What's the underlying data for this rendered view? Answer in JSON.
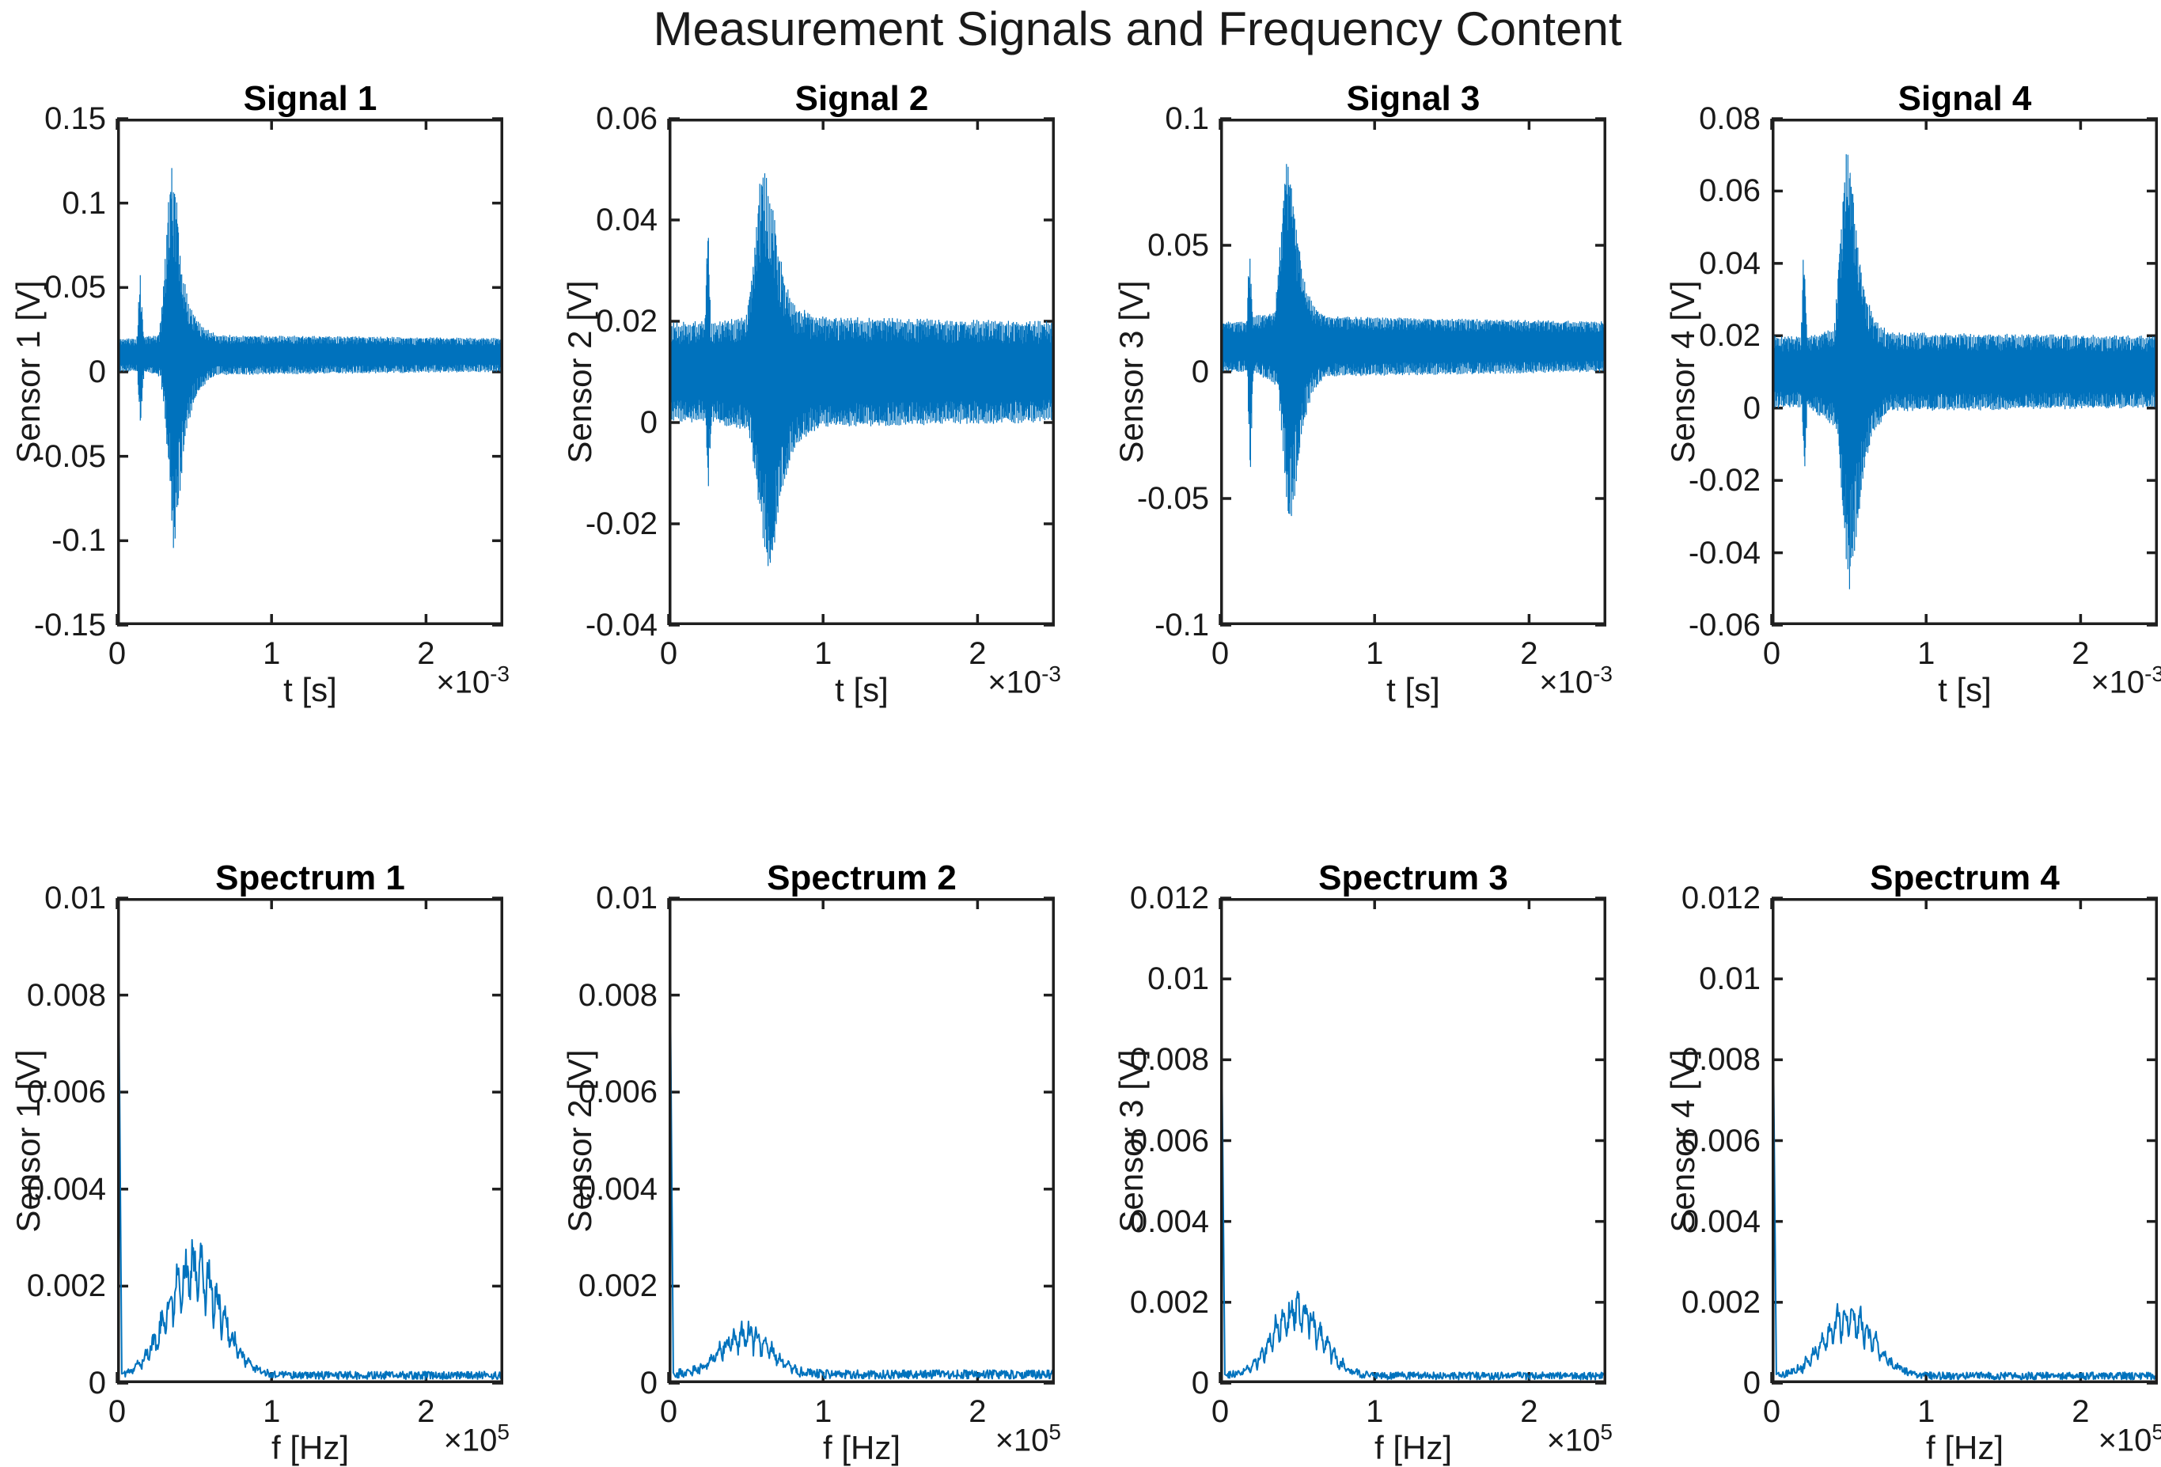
{
  "figure": {
    "title": "Measurement Signals and Frequency Content",
    "background_color": "#ffffff",
    "axis_color": "#1f1f1f",
    "line_color": "#0072BD"
  },
  "chart_data": [
    {
      "type": "line",
      "subtype": "signal",
      "title": "Signal 1",
      "ylabel": "Sensor 1 [V]",
      "xlabel": "t [s]",
      "x_scale_base": "×10",
      "x_scale_exp": "-3",
      "xlim": [
        0,
        2.5
      ],
      "xticks": [
        0,
        1,
        2
      ],
      "xtick_labels": [
        "0",
        "1",
        "2"
      ],
      "ylim": [
        -0.15,
        0.15
      ],
      "yticks": [
        0.15,
        0.1,
        0.05,
        0,
        -0.05,
        -0.1,
        -0.15
      ],
      "ytick_labels": [
        "0.15",
        "0.1",
        "0.05",
        "0",
        "-0.05",
        "-0.1",
        "-0.15"
      ],
      "grid": false,
      "legend": null,
      "noise_center": 0.01,
      "seed": 11,
      "envelope_max": [
        [
          0,
          0.02
        ],
        [
          0.128,
          0.02
        ],
        [
          0.15,
          0.062
        ],
        [
          0.172,
          0.021
        ],
        [
          0.27,
          0.022
        ],
        [
          0.3,
          0.05
        ],
        [
          0.325,
          0.095
        ],
        [
          0.355,
          0.125
        ],
        [
          0.385,
          0.102
        ],
        [
          0.42,
          0.062
        ],
        [
          0.46,
          0.042
        ],
        [
          0.51,
          0.032
        ],
        [
          0.57,
          0.026
        ],
        [
          0.66,
          0.022
        ],
        [
          2.5,
          0.02
        ]
      ],
      "envelope_min": [
        [
          0,
          0
        ],
        [
          0.13,
          0
        ],
        [
          0.152,
          -0.034
        ],
        [
          0.175,
          0
        ],
        [
          0.28,
          -0.003
        ],
        [
          0.31,
          -0.028
        ],
        [
          0.34,
          -0.068
        ],
        [
          0.365,
          -0.11
        ],
        [
          0.4,
          -0.078
        ],
        [
          0.44,
          -0.042
        ],
        [
          0.49,
          -0.02
        ],
        [
          0.55,
          -0.009
        ],
        [
          0.64,
          -0.002
        ],
        [
          2.5,
          0
        ]
      ]
    },
    {
      "type": "line",
      "subtype": "signal",
      "title": "Signal 2",
      "ylabel": "Sensor 2 [V]",
      "xlabel": "t [s]",
      "x_scale_base": "×10",
      "x_scale_exp": "-3",
      "xlim": [
        0,
        2.5
      ],
      "xticks": [
        0,
        1,
        2
      ],
      "xtick_labels": [
        "0",
        "1",
        "2"
      ],
      "ylim": [
        -0.04,
        0.06
      ],
      "yticks": [
        0.06,
        0.04,
        0.02,
        0,
        -0.02,
        -0.04
      ],
      "ytick_labels": [
        "0.06",
        "0.04",
        "0.02",
        "0",
        "-0.02",
        "-0.04"
      ],
      "grid": false,
      "legend": null,
      "noise_center": 0.01,
      "seed": 22,
      "envelope_max": [
        [
          0,
          0.02
        ],
        [
          0.235,
          0.02
        ],
        [
          0.253,
          0.042
        ],
        [
          0.272,
          0.02
        ],
        [
          0.5,
          0.021
        ],
        [
          0.545,
          0.03
        ],
        [
          0.585,
          0.047
        ],
        [
          0.625,
          0.051
        ],
        [
          0.665,
          0.045
        ],
        [
          0.705,
          0.036
        ],
        [
          0.755,
          0.028
        ],
        [
          0.83,
          0.023
        ],
        [
          0.96,
          0.021
        ],
        [
          2.5,
          0.02
        ]
      ],
      "envelope_min": [
        [
          0,
          0
        ],
        [
          0.24,
          0
        ],
        [
          0.258,
          -0.015
        ],
        [
          0.277,
          0
        ],
        [
          0.52,
          -0.002
        ],
        [
          0.565,
          -0.012
        ],
        [
          0.61,
          -0.023
        ],
        [
          0.655,
          -0.031
        ],
        [
          0.7,
          -0.021
        ],
        [
          0.755,
          -0.011
        ],
        [
          0.84,
          -0.004
        ],
        [
          1.0,
          -0.001
        ],
        [
          2.5,
          0
        ]
      ]
    },
    {
      "type": "line",
      "subtype": "signal",
      "title": "Signal 3",
      "ylabel": "Sensor 3 [V]",
      "xlabel": "t [s]",
      "x_scale_base": "×10",
      "x_scale_exp": "-3",
      "xlim": [
        0,
        2.5
      ],
      "xticks": [
        0,
        1,
        2
      ],
      "xtick_labels": [
        "0",
        "1",
        "2"
      ],
      "ylim": [
        -0.1,
        0.1
      ],
      "yticks": [
        0.1,
        0.05,
        0,
        -0.05,
        -0.1
      ],
      "ytick_labels": [
        "0.1",
        "0.05",
        "0",
        "-0.05",
        "-0.1"
      ],
      "grid": false,
      "legend": null,
      "noise_center": 0.01,
      "seed": 33,
      "envelope_max": [
        [
          0,
          0.02
        ],
        [
          0.172,
          0.02
        ],
        [
          0.19,
          0.051
        ],
        [
          0.21,
          0.022
        ],
        [
          0.355,
          0.024
        ],
        [
          0.395,
          0.058
        ],
        [
          0.425,
          0.089
        ],
        [
          0.455,
          0.079
        ],
        [
          0.495,
          0.056
        ],
        [
          0.545,
          0.036
        ],
        [
          0.6,
          0.027
        ],
        [
          0.68,
          0.022
        ],
        [
          2.5,
          0.02
        ]
      ],
      "envelope_min": [
        [
          0,
          0
        ],
        [
          0.175,
          0
        ],
        [
          0.195,
          -0.045
        ],
        [
          0.215,
          0
        ],
        [
          0.375,
          -0.006
        ],
        [
          0.415,
          -0.04
        ],
        [
          0.45,
          -0.065
        ],
        [
          0.49,
          -0.046
        ],
        [
          0.54,
          -0.021
        ],
        [
          0.6,
          -0.008
        ],
        [
          0.68,
          -0.002
        ],
        [
          2.5,
          0
        ]
      ]
    },
    {
      "type": "line",
      "subtype": "signal",
      "title": "Signal 4",
      "ylabel": "Sensor 4 [V]",
      "xlabel": "t [s]",
      "x_scale_base": "×10",
      "x_scale_exp": "-3",
      "xlim": [
        0,
        2.5
      ],
      "xticks": [
        0,
        1,
        2
      ],
      "xtick_labels": [
        "0",
        "1",
        "2"
      ],
      "ylim": [
        -0.06,
        0.08
      ],
      "yticks": [
        0.08,
        0.06,
        0.04,
        0.02,
        0,
        -0.02,
        -0.04,
        -0.06
      ],
      "ytick_labels": [
        "0.08",
        "0.06",
        "0.04",
        "0.02",
        "0",
        "-0.02",
        "-0.04",
        "-0.06"
      ],
      "grid": false,
      "legend": null,
      "noise_center": 0.01,
      "seed": 44,
      "envelope_max": [
        [
          0,
          0.02
        ],
        [
          0.19,
          0.02
        ],
        [
          0.208,
          0.048
        ],
        [
          0.228,
          0.02
        ],
        [
          0.405,
          0.022
        ],
        [
          0.45,
          0.053
        ],
        [
          0.485,
          0.073
        ],
        [
          0.515,
          0.067
        ],
        [
          0.555,
          0.047
        ],
        [
          0.605,
          0.032
        ],
        [
          0.665,
          0.025
        ],
        [
          0.76,
          0.021
        ],
        [
          2.5,
          0.02
        ]
      ],
      "envelope_min": [
        [
          0,
          0
        ],
        [
          0.195,
          0
        ],
        [
          0.213,
          -0.019
        ],
        [
          0.233,
          0
        ],
        [
          0.425,
          -0.006
        ],
        [
          0.465,
          -0.032
        ],
        [
          0.5,
          -0.053
        ],
        [
          0.545,
          -0.037
        ],
        [
          0.595,
          -0.018
        ],
        [
          0.655,
          -0.007
        ],
        [
          0.76,
          -0.001
        ],
        [
          2.5,
          0
        ]
      ]
    },
    {
      "type": "line",
      "subtype": "spectrum",
      "title": "Spectrum 1",
      "ylabel": "Sensor 1 [V]",
      "xlabel": "f [Hz]",
      "x_scale_base": "×10",
      "x_scale_exp": "5",
      "xlim": [
        0,
        2.5
      ],
      "xticks": [
        0,
        1,
        2
      ],
      "xtick_labels": [
        "0",
        "1",
        "2"
      ],
      "ylim": [
        0,
        0.01
      ],
      "yticks": [
        0.01,
        0.008,
        0.006,
        0.004,
        0.002,
        0
      ],
      "ytick_labels": [
        "0.01",
        "0.008",
        "0.006",
        "0.004",
        "0.002",
        "0"
      ],
      "grid": false,
      "legend": null,
      "seed": 55,
      "dc_value": 0.0105,
      "peak": 0.0027,
      "peak_freq": 0.5,
      "sigma": 0.17,
      "noise_floor": 0.00016,
      "ripple_period": 0.052
    },
    {
      "type": "line",
      "subtype": "spectrum",
      "title": "Spectrum 2",
      "ylabel": "Sensor 2 [V]",
      "xlabel": "f [Hz]",
      "x_scale_base": "×10",
      "x_scale_exp": "5",
      "xlim": [
        0,
        2.5
      ],
      "xticks": [
        0,
        1,
        2
      ],
      "xtick_labels": [
        "0",
        "1",
        "2"
      ],
      "ylim": [
        0,
        0.01
      ],
      "yticks": [
        0.01,
        0.008,
        0.006,
        0.004,
        0.002,
        0
      ],
      "ytick_labels": [
        "0.01",
        "0.008",
        "0.006",
        "0.004",
        "0.002",
        "0"
      ],
      "grid": false,
      "legend": null,
      "seed": 66,
      "dc_value": 0.0105,
      "peak": 0.00102,
      "peak_freq": 0.5,
      "sigma": 0.16,
      "noise_floor": 0.00018,
      "ripple_period": 0.05
    },
    {
      "type": "line",
      "subtype": "spectrum",
      "title": "Spectrum 3",
      "ylabel": "Sensor 3 [V]",
      "xlabel": "f [Hz]",
      "x_scale_base": "×10",
      "x_scale_exp": "5",
      "xlim": [
        0,
        2.5
      ],
      "xticks": [
        0,
        1,
        2
      ],
      "xtick_labels": [
        "0",
        "1",
        "2"
      ],
      "ylim": [
        0,
        0.012
      ],
      "yticks": [
        0.012,
        0.01,
        0.008,
        0.006,
        0.004,
        0.002,
        0
      ],
      "ytick_labels": [
        "0.012",
        "0.01",
        "0.008",
        "0.006",
        "0.004",
        "0.002",
        "0"
      ],
      "grid": false,
      "legend": null,
      "seed": 77,
      "dc_value": 0.01,
      "peak": 0.00198,
      "peak_freq": 0.5,
      "sigma": 0.155,
      "noise_floor": 0.00018,
      "ripple_period": 0.048
    },
    {
      "type": "line",
      "subtype": "spectrum",
      "title": "Spectrum 4",
      "ylabel": "Sensor 4 [V]",
      "xlabel": "f [Hz]",
      "x_scale_base": "×10",
      "x_scale_exp": "5",
      "xlim": [
        0,
        2.5
      ],
      "xticks": [
        0,
        1,
        2
      ],
      "xtick_labels": [
        "0",
        "1",
        "2"
      ],
      "ylim": [
        0,
        0.012
      ],
      "yticks": [
        0.012,
        0.01,
        0.008,
        0.006,
        0.004,
        0.002,
        0
      ],
      "ytick_labels": [
        "0.012",
        "0.01",
        "0.008",
        "0.006",
        "0.004",
        "0.002",
        "0"
      ],
      "grid": false,
      "legend": null,
      "seed": 88,
      "dc_value": 0.0102,
      "peak": 0.00175,
      "peak_freq": 0.5,
      "sigma": 0.16,
      "noise_floor": 0.00018,
      "ripple_period": 0.05
    }
  ]
}
